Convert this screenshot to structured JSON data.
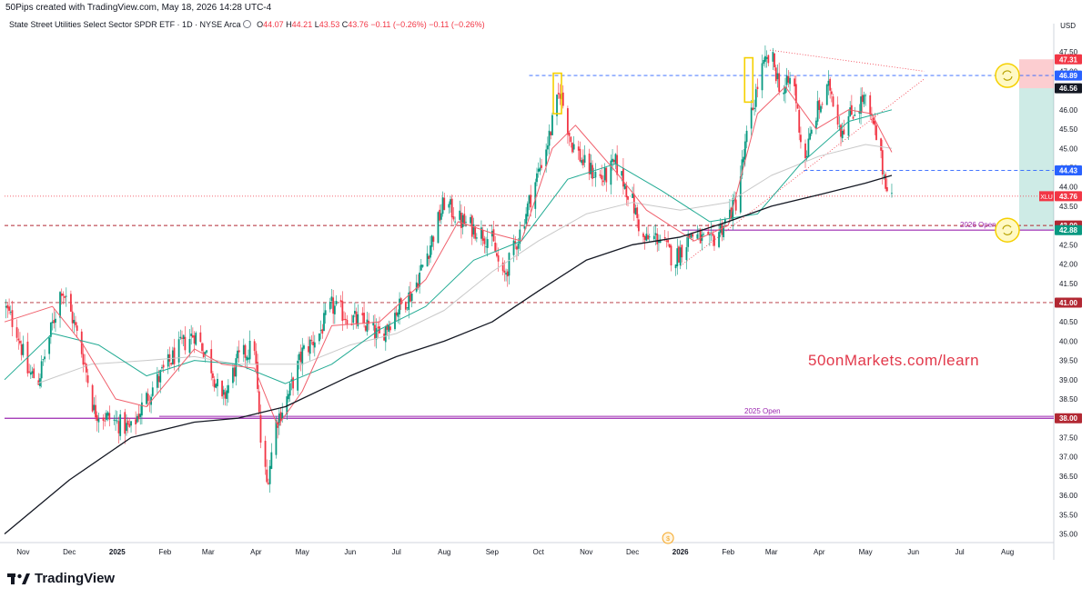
{
  "header": {
    "created_text": "50Pips created with TradingView.com, May 18, 2026 14:28 UTC-4",
    "symbol_text": "State Street Utilities Select Sector SPDR ETF · 1D · NYSE Arca",
    "ohlc": [
      {
        "label": "O",
        "value": "44.07"
      },
      {
        "label": "H",
        "value": "44.21"
      },
      {
        "label": "L",
        "value": "43.53"
      },
      {
        "label": "C",
        "value": "43.76"
      }
    ],
    "change_1": "−0.11 (−0.26%)",
    "change_2": "−0.11 (−0.26%)",
    "currency": "USD"
  },
  "watermark": "50onMarkets.com/learn",
  "brand": "TradingView",
  "chart_data": {
    "type": "candlestick",
    "symbol": "XLU",
    "x_range": [
      "2024-10-20",
      "2026-08-31"
    ],
    "x_ticks": [
      "Nov",
      "Dec",
      "2025",
      "Feb",
      "Mar",
      "Apr",
      "May",
      "Jun",
      "Jul",
      "Aug",
      "Sep",
      "Oct",
      "Nov",
      "Dec",
      "2026",
      "Feb",
      "Mar",
      "Apr",
      "May",
      "Jun",
      "Jul",
      "Aug"
    ],
    "y_range": [
      34.8,
      48.0
    ],
    "y_ticks": [
      "47.50",
      "47.00",
      "46.50",
      "46.00",
      "45.50",
      "45.00",
      "44.50",
      "44.00",
      "43.50",
      "43.00",
      "42.50",
      "42.00",
      "41.50",
      "41.00",
      "40.50",
      "40.00",
      "39.50",
      "39.00",
      "38.50",
      "38.00",
      "37.50",
      "37.00",
      "36.50",
      "36.00",
      "35.50",
      "35.00"
    ],
    "close_path": [
      [
        "2024-10-20",
        40.9
      ],
      [
        "2024-10-28",
        40.3
      ],
      [
        "2024-11-04",
        39.2
      ],
      [
        "2024-11-11",
        39.0
      ],
      [
        "2024-11-18",
        40.1
      ],
      [
        "2024-11-26",
        41.4
      ],
      [
        "2024-12-03",
        40.6
      ],
      [
        "2024-12-10",
        39.6
      ],
      [
        "2024-12-17",
        38.2
      ],
      [
        "2024-12-31",
        37.9
      ],
      [
        "2025-01-10",
        37.7
      ],
      [
        "2025-01-17",
        38.3
      ],
      [
        "2025-01-24",
        38.8
      ],
      [
        "2025-02-03",
        39.4
      ],
      [
        "2025-02-12",
        39.9
      ],
      [
        "2025-02-20",
        40.2
      ],
      [
        "2025-03-01",
        39.6
      ],
      [
        "2025-03-10",
        38.4
      ],
      [
        "2025-03-20",
        39.5
      ],
      [
        "2025-03-31",
        39.9
      ],
      [
        "2025-04-04",
        37.4
      ],
      [
        "2025-04-08",
        36.3
      ],
      [
        "2025-04-14",
        37.9
      ],
      [
        "2025-04-22",
        38.6
      ],
      [
        "2025-05-01",
        39.7
      ],
      [
        "2025-05-12",
        40.2
      ],
      [
        "2025-05-20",
        40.9
      ],
      [
        "2025-06-01",
        40.6
      ],
      [
        "2025-06-12",
        40.4
      ],
      [
        "2025-06-20",
        40.1
      ],
      [
        "2025-07-01",
        40.8
      ],
      [
        "2025-07-12",
        41.3
      ],
      [
        "2025-07-22",
        42.4
      ],
      [
        "2025-08-01",
        43.6
      ],
      [
        "2025-08-12",
        43.1
      ],
      [
        "2025-08-22",
        42.9
      ],
      [
        "2025-09-01",
        42.6
      ],
      [
        "2025-09-08",
        41.6
      ],
      [
        "2025-09-18",
        42.7
      ],
      [
        "2025-09-28",
        44.0
      ],
      [
        "2025-10-08",
        45.3
      ],
      [
        "2025-10-15",
        46.5
      ],
      [
        "2025-10-22",
        45.2
      ],
      [
        "2025-11-01",
        44.5
      ],
      [
        "2025-11-12",
        44.2
      ],
      [
        "2025-11-20",
        44.6
      ],
      [
        "2025-12-01",
        43.6
      ],
      [
        "2025-12-08",
        42.6
      ],
      [
        "2025-12-18",
        42.7
      ],
      [
        "2025-12-28",
        42.1
      ],
      [
        "2026-01-08",
        42.8
      ],
      [
        "2026-01-20",
        42.5
      ],
      [
        "2026-01-30",
        43.1
      ],
      [
        "2026-02-06",
        43.6
      ],
      [
        "2026-02-14",
        45.5
      ],
      [
        "2026-02-22",
        47.0
      ],
      [
        "2026-03-01",
        47.4
      ],
      [
        "2026-03-08",
        46.4
      ],
      [
        "2026-03-15",
        46.9
      ],
      [
        "2026-03-22",
        44.6
      ],
      [
        "2026-03-30",
        45.9
      ],
      [
        "2026-04-08",
        46.6
      ],
      [
        "2026-04-15",
        45.5
      ],
      [
        "2026-04-22",
        45.9
      ],
      [
        "2026-04-30",
        46.3
      ],
      [
        "2026-05-08",
        45.3
      ],
      [
        "2026-05-13",
        44.3
      ],
      [
        "2026-05-18",
        43.76
      ]
    ],
    "ma_200_path": [
      [
        "2024-10-20",
        35.0
      ],
      [
        "2024-12-01",
        36.4
      ],
      [
        "2025-01-10",
        37.5
      ],
      [
        "2025-02-20",
        37.9
      ],
      [
        "2025-03-20",
        38.0
      ],
      [
        "2025-04-20",
        38.3
      ],
      [
        "2025-06-01",
        39.1
      ],
      [
        "2025-07-01",
        39.6
      ],
      [
        "2025-08-01",
        40.0
      ],
      [
        "2025-09-01",
        40.5
      ],
      [
        "2025-10-01",
        41.3
      ],
      [
        "2025-11-01",
        42.1
      ],
      [
        "2025-12-01",
        42.5
      ],
      [
        "2026-01-01",
        42.7
      ],
      [
        "2026-02-01",
        43.1
      ],
      [
        "2026-03-01",
        43.5
      ],
      [
        "2026-04-01",
        43.8
      ],
      [
        "2026-05-01",
        44.1
      ],
      [
        "2026-05-18",
        44.3
      ]
    ],
    "ma_100_path": [
      [
        "2024-11-10",
        38.9
      ],
      [
        "2024-12-15",
        39.4
      ],
      [
        "2025-01-20",
        39.5
      ],
      [
        "2025-02-20",
        39.6
      ],
      [
        "2025-03-20",
        39.4
      ],
      [
        "2025-05-01",
        39.4
      ],
      [
        "2025-06-01",
        39.9
      ],
      [
        "2025-07-01",
        40.2
      ],
      [
        "2025-08-01",
        40.8
      ],
      [
        "2025-09-01",
        41.8
      ],
      [
        "2025-10-01",
        42.6
      ],
      [
        "2025-11-01",
        43.3
      ],
      [
        "2025-12-01",
        43.6
      ],
      [
        "2026-01-01",
        43.4
      ],
      [
        "2026-02-01",
        43.6
      ],
      [
        "2026-03-01",
        44.3
      ],
      [
        "2026-04-01",
        44.8
      ],
      [
        "2026-05-01",
        45.1
      ],
      [
        "2026-05-18",
        45.0
      ]
    ],
    "ma_50_path": [
      [
        "2024-10-20",
        39.0
      ],
      [
        "2024-11-20",
        40.2
      ],
      [
        "2024-12-20",
        39.9
      ],
      [
        "2025-01-20",
        39.1
      ],
      [
        "2025-02-20",
        39.5
      ],
      [
        "2025-03-20",
        39.4
      ],
      [
        "2025-04-20",
        38.9
      ],
      [
        "2025-05-20",
        39.4
      ],
      [
        "2025-06-20",
        40.3
      ],
      [
        "2025-07-20",
        40.9
      ],
      [
        "2025-08-20",
        42.1
      ],
      [
        "2025-09-20",
        42.6
      ],
      [
        "2025-10-20",
        44.2
      ],
      [
        "2025-11-20",
        44.6
      ],
      [
        "2025-12-20",
        43.9
      ],
      [
        "2026-01-20",
        43.1
      ],
      [
        "2026-02-20",
        43.3
      ],
      [
        "2026-03-20",
        44.6
      ],
      [
        "2026-04-20",
        45.7
      ],
      [
        "2026-05-18",
        46.0
      ]
    ],
    "ma_20_path": [
      [
        "2024-10-20",
        40.5
      ],
      [
        "2024-11-20",
        40.9
      ],
      [
        "2024-12-10",
        39.9
      ],
      [
        "2024-12-31",
        38.5
      ],
      [
        "2025-01-20",
        38.3
      ],
      [
        "2025-02-20",
        39.8
      ],
      [
        "2025-03-10",
        39.4
      ],
      [
        "2025-03-31",
        39.3
      ],
      [
        "2025-04-15",
        37.8
      ],
      [
        "2025-05-01",
        38.7
      ],
      [
        "2025-05-20",
        40.4
      ],
      [
        "2025-06-20",
        40.5
      ],
      [
        "2025-07-20",
        41.6
      ],
      [
        "2025-08-10",
        43.1
      ],
      [
        "2025-09-01",
        42.8
      ],
      [
        "2025-09-20",
        42.6
      ],
      [
        "2025-10-10",
        45.0
      ],
      [
        "2025-10-25",
        45.6
      ],
      [
        "2025-11-20",
        44.4
      ],
      [
        "2025-12-10",
        43.4
      ],
      [
        "2026-01-10",
        42.6
      ],
      [
        "2026-02-01",
        43.0
      ],
      [
        "2026-02-20",
        45.9
      ],
      [
        "2026-03-10",
        46.6
      ],
      [
        "2026-03-30",
        45.5
      ],
      [
        "2026-04-20",
        46.0
      ],
      [
        "2026-05-05",
        45.9
      ],
      [
        "2026-05-18",
        44.9
      ]
    ],
    "horizontal_levels": [
      {
        "price": 46.89,
        "label": "46.89",
        "style": "dashed",
        "color": "#2962ff"
      },
      {
        "price": 44.43,
        "label": "44.43",
        "style": "dashed",
        "color": "#2962ff"
      },
      {
        "price": 43.0,
        "label": "43.00",
        "style": "dashed",
        "color": "#b22833"
      },
      {
        "price": 41.0,
        "label": "41.00",
        "style": "dashed",
        "color": "#b22833"
      },
      {
        "price": 38.0,
        "label": "38.00",
        "style": "solid",
        "color": "#9c27b0"
      }
    ],
    "open_lines": [
      {
        "label": "2026 Open",
        "price": 42.88
      },
      {
        "label": "2025 Open",
        "price": 38.05
      }
    ],
    "price_labels": [
      {
        "text": "47.31",
        "price": 47.31,
        "color": "#f23645"
      },
      {
        "text": "46.89",
        "price": 46.89,
        "color": "#2962ff"
      },
      {
        "text": "46.56",
        "price": 46.56,
        "color": "#131722"
      },
      {
        "text": "44.43",
        "price": 44.43,
        "color": "#2962ff"
      },
      {
        "text": "43.76",
        "price": 43.76,
        "color": "#f23645",
        "symbol": "XLU"
      },
      {
        "text": "43.00",
        "price": 43.0,
        "color": "#b22833"
      },
      {
        "text": "42.88",
        "price": 42.88,
        "color": "#089981"
      },
      {
        "text": "41.00",
        "price": 41.0,
        "color": "#b22833"
      },
      {
        "text": "38.00",
        "price": 38.0,
        "color": "#b22833"
      }
    ],
    "position": {
      "stop": 47.31,
      "entry": 46.56,
      "target": 42.88
    },
    "legend": "none"
  }
}
